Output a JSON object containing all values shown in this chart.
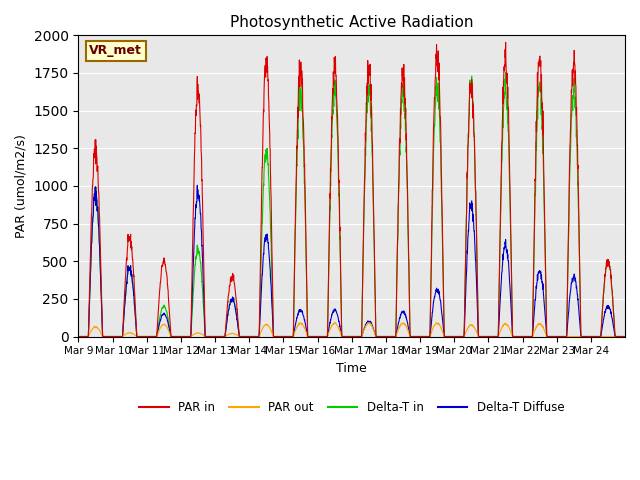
{
  "title": "Photosynthetic Active Radiation",
  "ylabel": "PAR (umol/m2/s)",
  "xlabel": "Time",
  "annotation": "VR_met",
  "ylim": [
    0,
    2000
  ],
  "background_color": "#e8e8e8",
  "colors": {
    "par_in": "#dd0000",
    "par_out": "#ffa500",
    "delta_t_in": "#00cc00",
    "delta_t_diffuse": "#0000cc"
  },
  "legend_labels": [
    "PAR in",
    "PAR out",
    "Delta-T in",
    "Delta-T Diffuse"
  ],
  "x_tick_labels": [
    "Mar 9",
    "Mar 10",
    "Mar 11",
    "Mar 12",
    "Mar 13",
    "Mar 14",
    "Mar 15",
    "Mar 16",
    "Mar 17",
    "Mar 18",
    "Mar 19",
    "Mar 20",
    "Mar 21",
    "Mar 22",
    "Mar 23",
    "Mar 24"
  ],
  "n_days": 16,
  "points_per_day": 144,
  "seed": 42,
  "par_in_peaks": [
    1250,
    650,
    500,
    1650,
    400,
    1830,
    1790,
    1780,
    1770,
    1750,
    1870,
    1650,
    1850,
    1830,
    1830,
    500
  ],
  "par_out_peaks": [
    80,
    30,
    100,
    30,
    25,
    100,
    110,
    110,
    110,
    110,
    110,
    95,
    105,
    105,
    0,
    0
  ],
  "delta_t_in_peaks": [
    950,
    450,
    200,
    580,
    250,
    1230,
    1620,
    1630,
    1640,
    1640,
    1660,
    1670,
    1660,
    1660,
    1650,
    500
  ],
  "delta_t_diff_peaks": [
    950,
    450,
    150,
    960,
    250,
    670,
    175,
    175,
    100,
    165,
    310,
    870,
    610,
    430,
    400,
    200
  ]
}
